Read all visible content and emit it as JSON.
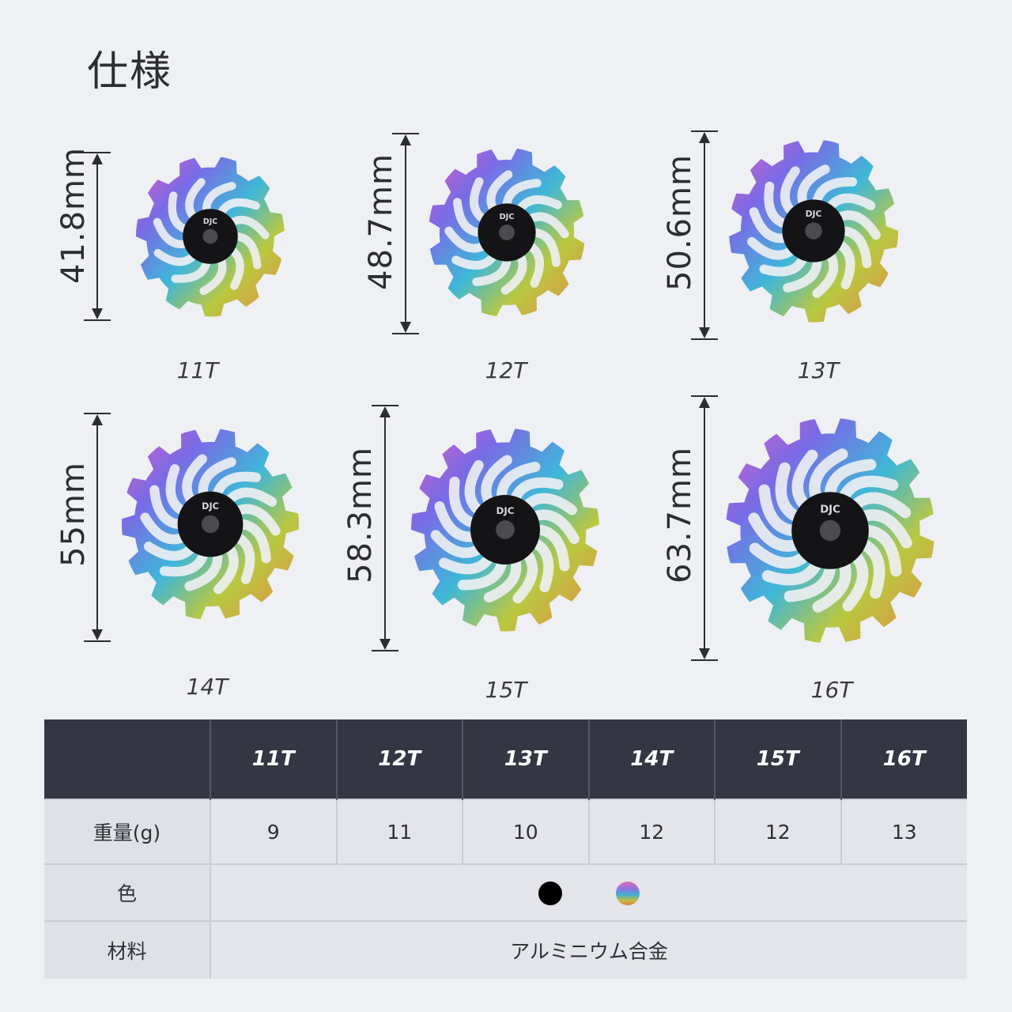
{
  "title": "仕様",
  "pulleys": [
    {
      "teeth": "11T",
      "size": "41.8mm",
      "tooth_count": 11
    },
    {
      "teeth": "12T",
      "size": "48.7mm",
      "tooth_count": 12
    },
    {
      "teeth": "13T",
      "size": "50.6mm",
      "tooth_count": 13
    },
    {
      "teeth": "14T",
      "size": "55mm",
      "tooth_count": 14
    },
    {
      "teeth": "15T",
      "size": "58.3mm",
      "tooth_count": 15
    },
    {
      "teeth": "16T",
      "size": "63.7mm",
      "tooth_count": 16
    }
  ],
  "hub_logo": "DJC",
  "table": {
    "headers": [
      "",
      "11T",
      "12T",
      "13T",
      "14T",
      "15T",
      "16T"
    ],
    "weight_label": "重量(g)",
    "weights": [
      "9",
      "11",
      "10",
      "12",
      "12",
      "13"
    ],
    "color_label": "色",
    "colors": [
      {
        "name": "black",
        "hex": "#000000"
      },
      {
        "name": "rainbow",
        "hex": "#b060c0"
      }
    ],
    "material_label": "材料",
    "material": "アルミニウム合金"
  }
}
